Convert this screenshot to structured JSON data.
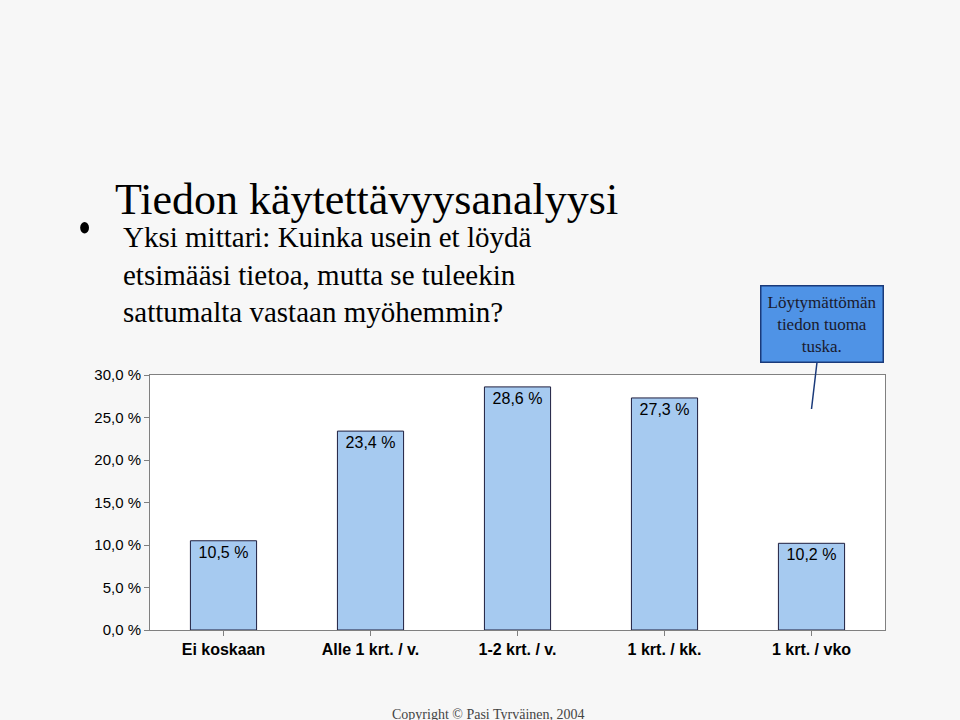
{
  "chart_data": {
    "type": "bar",
    "title": "Tiedon käytettävyysanalyysi",
    "subtitle": "Yksi mittari: Kuinka usein et löydä etsimääsi tietoa, mutta se tuleekin sattumalta vastaan myöhemmin?",
    "categories": [
      "Ei koskaan",
      "Alle 1 krt. / v.",
      "1-2 krt. / v.",
      "1 krt. / kk.",
      "1 krt. / vko"
    ],
    "values": [
      10.5,
      23.4,
      28.6,
      27.3,
      10.2
    ],
    "value_labels": [
      "10,5 %",
      "23,4 %",
      "28,6 %",
      "27,3 %",
      "10,2 %"
    ],
    "data_labels": true,
    "color": "#a6caf0",
    "ylim": [
      0,
      30
    ],
    "yticks": [
      {
        "value": 0,
        "label": "0,0 %"
      },
      {
        "value": 5,
        "label": "5,0 %"
      },
      {
        "value": 10,
        "label": "10,0 %"
      },
      {
        "value": 15,
        "label": "15,0 %"
      },
      {
        "value": 20,
        "label": "20,0 %"
      },
      {
        "value": 25,
        "label": "25,0 %"
      },
      {
        "value": 30,
        "label": "30,0 %"
      }
    ],
    "grid": false,
    "annotations": [
      "Löytymättömän tiedon tuoma tuska.",
      "Copyright © Pasi Tyrväinen, 2004"
    ]
  }
}
